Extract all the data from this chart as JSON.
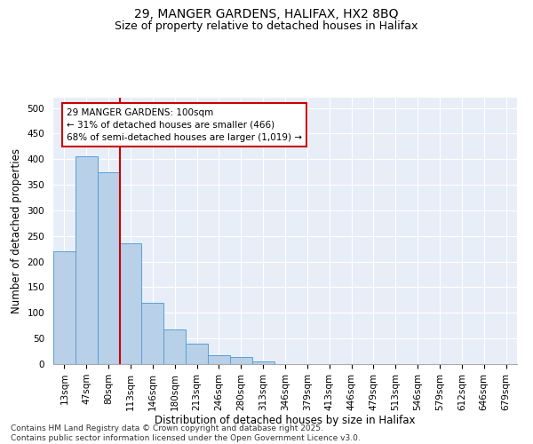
{
  "title_line1": "29, MANGER GARDENS, HALIFAX, HX2 8BQ",
  "title_line2": "Size of property relative to detached houses in Halifax",
  "xlabel": "Distribution of detached houses by size in Halifax",
  "ylabel": "Number of detached properties",
  "categories": [
    "13sqm",
    "47sqm",
    "80sqm",
    "113sqm",
    "146sqm",
    "180sqm",
    "213sqm",
    "246sqm",
    "280sqm",
    "313sqm",
    "346sqm",
    "379sqm",
    "413sqm",
    "446sqm",
    "479sqm",
    "513sqm",
    "546sqm",
    "579sqm",
    "612sqm",
    "646sqm",
    "679sqm"
  ],
  "values": [
    220,
    405,
    375,
    235,
    120,
    68,
    40,
    18,
    14,
    5,
    0,
    0,
    0,
    0,
    0,
    0,
    0,
    0,
    0,
    0,
    0
  ],
  "bar_color": "#b8d0e8",
  "bar_edge_color": "#5a9fd4",
  "vline_index": 3,
  "vline_color": "#cc0000",
  "annotation_text": "29 MANGER GARDENS: 100sqm\n← 31% of detached houses are smaller (466)\n68% of semi-detached houses are larger (1,019) →",
  "annotation_box_facecolor": "#ffffff",
  "annotation_box_edgecolor": "#cc0000",
  "ylim": [
    0,
    520
  ],
  "yticks": [
    0,
    50,
    100,
    150,
    200,
    250,
    300,
    350,
    400,
    450,
    500
  ],
  "background_color": "#e8eef8",
  "footer_line1": "Contains HM Land Registry data © Crown copyright and database right 2025.",
  "footer_line2": "Contains public sector information licensed under the Open Government Licence v3.0.",
  "title_fontsize": 10,
  "subtitle_fontsize": 9,
  "axis_label_fontsize": 8.5,
  "tick_fontsize": 7.5,
  "annotation_fontsize": 7.5,
  "footer_fontsize": 6.5
}
